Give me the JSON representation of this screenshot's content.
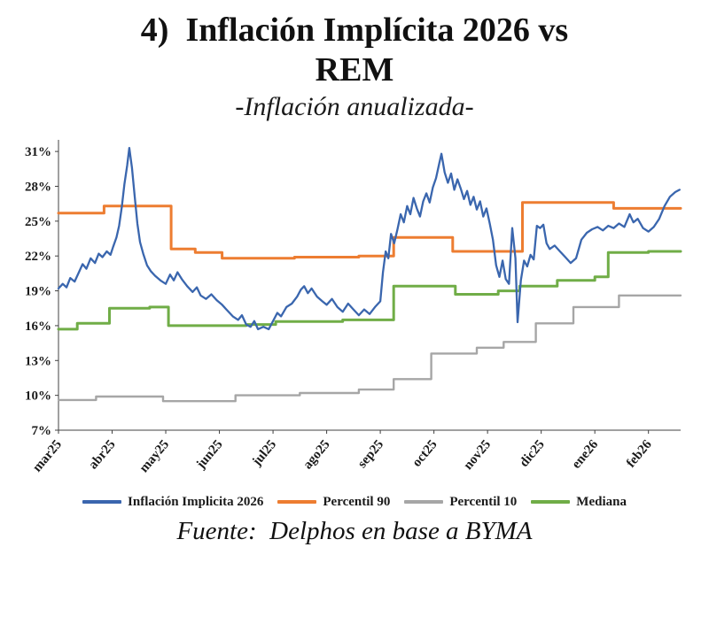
{
  "page": {
    "title_line1": "4)  Inflación Implícita 2026 vs",
    "title_line2": "REM",
    "subtitle": "-Inflación anualizada-",
    "source": "Fuente:  Delphos en base a BYMA"
  },
  "chart_data": {
    "type": "line",
    "title": "4) Inflación Implícita 2026 vs REM",
    "subtitle": "Inflación anualizada",
    "xlabel": "",
    "ylabel": "",
    "grid": false,
    "legend_position": "bottom",
    "ylim": [
      7,
      32
    ],
    "y_ticks": [
      7,
      10,
      13,
      16,
      19,
      22,
      25,
      28,
      31
    ],
    "y_tick_suffix": "%",
    "categories": [
      "mar25",
      "abr25",
      "may25",
      "jun25",
      "jul25",
      "ago25",
      "sep25",
      "oct25",
      "nov25",
      "dic25",
      "ene26",
      "feb26"
    ],
    "x_max": 11.6,
    "series": [
      {
        "name": "Inflación Implicita 2026",
        "color": "#3A66AE",
        "width": 2.3,
        "points": [
          [
            0,
            19.2
          ],
          [
            0.08,
            19.6
          ],
          [
            0.15,
            19.3
          ],
          [
            0.22,
            20.1
          ],
          [
            0.3,
            19.8
          ],
          [
            0.38,
            20.6
          ],
          [
            0.45,
            21.3
          ],
          [
            0.52,
            20.9
          ],
          [
            0.6,
            21.8
          ],
          [
            0.68,
            21.4
          ],
          [
            0.75,
            22.2
          ],
          [
            0.82,
            21.9
          ],
          [
            0.9,
            22.4
          ],
          [
            0.97,
            22.1
          ],
          [
            1.02,
            22.8
          ],
          [
            1.08,
            23.6
          ],
          [
            1.13,
            24.6
          ],
          [
            1.18,
            26.2
          ],
          [
            1.23,
            28.2
          ],
          [
            1.28,
            29.8
          ],
          [
            1.32,
            31.3
          ],
          [
            1.37,
            29.6
          ],
          [
            1.42,
            27.2
          ],
          [
            1.47,
            24.8
          ],
          [
            1.52,
            23.2
          ],
          [
            1.58,
            22.2
          ],
          [
            1.65,
            21.2
          ],
          [
            1.72,
            20.7
          ],
          [
            1.8,
            20.3
          ],
          [
            1.9,
            19.9
          ],
          [
            2.0,
            19.6
          ],
          [
            2.08,
            20.4
          ],
          [
            2.15,
            19.9
          ],
          [
            2.22,
            20.6
          ],
          [
            2.3,
            20.0
          ],
          [
            2.4,
            19.4
          ],
          [
            2.5,
            18.9
          ],
          [
            2.58,
            19.3
          ],
          [
            2.65,
            18.6
          ],
          [
            2.75,
            18.3
          ],
          [
            2.85,
            18.7
          ],
          [
            2.95,
            18.2
          ],
          [
            3.05,
            17.8
          ],
          [
            3.15,
            17.3
          ],
          [
            3.25,
            16.8
          ],
          [
            3.35,
            16.5
          ],
          [
            3.42,
            16.9
          ],
          [
            3.5,
            16.1
          ],
          [
            3.58,
            15.9
          ],
          [
            3.65,
            16.4
          ],
          [
            3.72,
            15.7
          ],
          [
            3.82,
            15.9
          ],
          [
            3.92,
            15.7
          ],
          [
            4.0,
            16.4
          ],
          [
            4.08,
            17.1
          ],
          [
            4.15,
            16.8
          ],
          [
            4.25,
            17.6
          ],
          [
            4.35,
            17.9
          ],
          [
            4.45,
            18.5
          ],
          [
            4.52,
            19.1
          ],
          [
            4.58,
            19.4
          ],
          [
            4.65,
            18.8
          ],
          [
            4.72,
            19.2
          ],
          [
            4.82,
            18.5
          ],
          [
            4.92,
            18.1
          ],
          [
            5.0,
            17.8
          ],
          [
            5.1,
            18.3
          ],
          [
            5.2,
            17.6
          ],
          [
            5.3,
            17.2
          ],
          [
            5.4,
            17.9
          ],
          [
            5.5,
            17.4
          ],
          [
            5.6,
            16.9
          ],
          [
            5.7,
            17.4
          ],
          [
            5.8,
            17.0
          ],
          [
            5.9,
            17.6
          ],
          [
            6.0,
            18.1
          ],
          [
            6.05,
            20.6
          ],
          [
            6.1,
            22.4
          ],
          [
            6.15,
            21.8
          ],
          [
            6.2,
            23.9
          ],
          [
            6.26,
            23.1
          ],
          [
            6.32,
            24.3
          ],
          [
            6.38,
            25.6
          ],
          [
            6.44,
            24.9
          ],
          [
            6.5,
            26.3
          ],
          [
            6.56,
            25.6
          ],
          [
            6.62,
            27.0
          ],
          [
            6.68,
            26.1
          ],
          [
            6.74,
            25.4
          ],
          [
            6.8,
            26.7
          ],
          [
            6.86,
            27.4
          ],
          [
            6.92,
            26.6
          ],
          [
            6.98,
            27.9
          ],
          [
            7.04,
            28.7
          ],
          [
            7.1,
            30.0
          ],
          [
            7.14,
            30.8
          ],
          [
            7.2,
            29.2
          ],
          [
            7.26,
            28.3
          ],
          [
            7.32,
            29.1
          ],
          [
            7.38,
            27.7
          ],
          [
            7.44,
            28.6
          ],
          [
            7.5,
            27.8
          ],
          [
            7.56,
            26.9
          ],
          [
            7.62,
            27.6
          ],
          [
            7.68,
            26.4
          ],
          [
            7.74,
            27.1
          ],
          [
            7.8,
            26.0
          ],
          [
            7.86,
            26.7
          ],
          [
            7.92,
            25.4
          ],
          [
            7.98,
            26.1
          ],
          [
            8.04,
            24.8
          ],
          [
            8.1,
            23.4
          ],
          [
            8.16,
            21.2
          ],
          [
            8.22,
            20.2
          ],
          [
            8.28,
            21.6
          ],
          [
            8.34,
            20.0
          ],
          [
            8.4,
            19.6
          ],
          [
            8.46,
            24.4
          ],
          [
            8.52,
            21.8
          ],
          [
            8.56,
            16.3
          ],
          [
            8.62,
            19.9
          ],
          [
            8.68,
            21.6
          ],
          [
            8.74,
            21.1
          ],
          [
            8.8,
            22.1
          ],
          [
            8.86,
            21.7
          ],
          [
            8.92,
            24.6
          ],
          [
            8.98,
            24.4
          ],
          [
            9.04,
            24.7
          ],
          [
            9.1,
            23.1
          ],
          [
            9.16,
            22.6
          ],
          [
            9.25,
            22.9
          ],
          [
            9.35,
            22.4
          ],
          [
            9.45,
            21.9
          ],
          [
            9.55,
            21.4
          ],
          [
            9.65,
            21.8
          ],
          [
            9.75,
            23.4
          ],
          [
            9.85,
            24.0
          ],
          [
            9.95,
            24.3
          ],
          [
            10.05,
            24.5
          ],
          [
            10.15,
            24.2
          ],
          [
            10.25,
            24.6
          ],
          [
            10.35,
            24.4
          ],
          [
            10.45,
            24.8
          ],
          [
            10.55,
            24.5
          ],
          [
            10.65,
            25.6
          ],
          [
            10.72,
            24.9
          ],
          [
            10.8,
            25.2
          ],
          [
            10.9,
            24.4
          ],
          [
            11.0,
            24.1
          ],
          [
            11.1,
            24.5
          ],
          [
            11.2,
            25.2
          ],
          [
            11.3,
            26.3
          ],
          [
            11.4,
            27.1
          ],
          [
            11.5,
            27.5
          ],
          [
            11.58,
            27.7
          ]
        ]
      },
      {
        "name": "Percentil 90",
        "color": "#ED7D31",
        "width": 3,
        "points": [
          [
            0,
            25.7
          ],
          [
            0.85,
            25.7
          ],
          [
            0.85,
            26.3
          ],
          [
            2.1,
            26.3
          ],
          [
            2.1,
            22.6
          ],
          [
            2.55,
            22.6
          ],
          [
            2.55,
            22.3
          ],
          [
            3.05,
            22.3
          ],
          [
            3.05,
            21.8
          ],
          [
            4.4,
            21.8
          ],
          [
            4.4,
            21.9
          ],
          [
            5.6,
            21.9
          ],
          [
            5.6,
            22.0
          ],
          [
            6.25,
            22.0
          ],
          [
            6.25,
            23.6
          ],
          [
            7.35,
            23.6
          ],
          [
            7.35,
            22.4
          ],
          [
            8.65,
            22.4
          ],
          [
            8.65,
            26.6
          ],
          [
            10.35,
            26.6
          ],
          [
            10.35,
            26.1
          ],
          [
            11.6,
            26.1
          ]
        ]
      },
      {
        "name": "Percentil 10",
        "color": "#A6A6A6",
        "width": 2.4,
        "points": [
          [
            0,
            9.6
          ],
          [
            0.7,
            9.6
          ],
          [
            0.7,
            9.9
          ],
          [
            1.95,
            9.9
          ],
          [
            1.95,
            9.5
          ],
          [
            3.3,
            9.5
          ],
          [
            3.3,
            10.0
          ],
          [
            4.5,
            10.0
          ],
          [
            4.5,
            10.2
          ],
          [
            5.6,
            10.2
          ],
          [
            5.6,
            10.5
          ],
          [
            6.25,
            10.5
          ],
          [
            6.25,
            11.4
          ],
          [
            6.95,
            11.4
          ],
          [
            6.95,
            13.6
          ],
          [
            7.8,
            13.6
          ],
          [
            7.8,
            14.1
          ],
          [
            8.3,
            14.1
          ],
          [
            8.3,
            14.6
          ],
          [
            8.9,
            14.6
          ],
          [
            8.9,
            16.2
          ],
          [
            9.6,
            16.2
          ],
          [
            9.6,
            17.6
          ],
          [
            10.45,
            17.6
          ],
          [
            10.45,
            18.6
          ],
          [
            11.6,
            18.6
          ]
        ]
      },
      {
        "name": "Mediana",
        "color": "#70AD47",
        "width": 3,
        "points": [
          [
            0,
            15.7
          ],
          [
            0.35,
            15.7
          ],
          [
            0.35,
            16.2
          ],
          [
            0.95,
            16.2
          ],
          [
            0.95,
            17.5
          ],
          [
            1.7,
            17.5
          ],
          [
            1.7,
            17.6
          ],
          [
            2.05,
            17.6
          ],
          [
            2.05,
            16.0
          ],
          [
            3.5,
            16.0
          ],
          [
            3.5,
            16.1
          ],
          [
            4.05,
            16.1
          ],
          [
            4.05,
            16.35
          ],
          [
            5.3,
            16.35
          ],
          [
            5.3,
            16.5
          ],
          [
            6.25,
            16.5
          ],
          [
            6.25,
            19.4
          ],
          [
            7.4,
            19.4
          ],
          [
            7.4,
            18.7
          ],
          [
            8.2,
            18.7
          ],
          [
            8.2,
            19.0
          ],
          [
            8.6,
            19.0
          ],
          [
            8.6,
            19.4
          ],
          [
            9.3,
            19.4
          ],
          [
            9.3,
            19.9
          ],
          [
            10.0,
            19.9
          ],
          [
            10.0,
            20.2
          ],
          [
            10.25,
            20.2
          ],
          [
            10.25,
            22.3
          ],
          [
            11.0,
            22.3
          ],
          [
            11.0,
            22.4
          ],
          [
            11.6,
            22.4
          ]
        ]
      }
    ]
  }
}
